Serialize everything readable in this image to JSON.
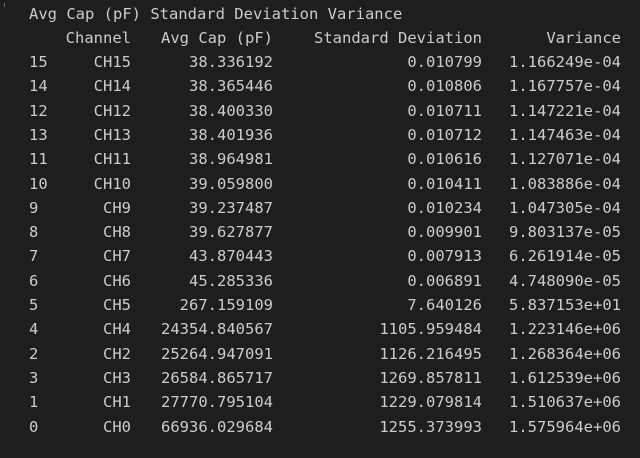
{
  "title": "Avg Cap (pF) Standard Deviation Variance",
  "headers": {
    "channel": "Channel",
    "avg_cap": "Avg Cap (pF)",
    "std_dev": "Standard Deviation",
    "variance": "Variance"
  },
  "rows": [
    {
      "index": "15",
      "channel": "CH15",
      "avg_cap": "38.336192",
      "std_dev": "0.010799",
      "variance": "1.166249e-04"
    },
    {
      "index": "14",
      "channel": "CH14",
      "avg_cap": "38.365446",
      "std_dev": "0.010806",
      "variance": "1.167757e-04"
    },
    {
      "index": "12",
      "channel": "CH12",
      "avg_cap": "38.400330",
      "std_dev": "0.010711",
      "variance": "1.147221e-04"
    },
    {
      "index": "13",
      "channel": "CH13",
      "avg_cap": "38.401936",
      "std_dev": "0.010712",
      "variance": "1.147463e-04"
    },
    {
      "index": "11",
      "channel": "CH11",
      "avg_cap": "38.964981",
      "std_dev": "0.010616",
      "variance": "1.127071e-04"
    },
    {
      "index": "10",
      "channel": "CH10",
      "avg_cap": "39.059800",
      "std_dev": "0.010411",
      "variance": "1.083886e-04"
    },
    {
      "index": "9",
      "channel": "CH9",
      "avg_cap": "39.237487",
      "std_dev": "0.010234",
      "variance": "1.047305e-04"
    },
    {
      "index": "8",
      "channel": "CH8",
      "avg_cap": "39.627877",
      "std_dev": "0.009901",
      "variance": "9.803137e-05"
    },
    {
      "index": "7",
      "channel": "CH7",
      "avg_cap": "43.870443",
      "std_dev": "0.007913",
      "variance": "6.261914e-05"
    },
    {
      "index": "6",
      "channel": "CH6",
      "avg_cap": "45.285336",
      "std_dev": "0.006891",
      "variance": "4.748090e-05"
    },
    {
      "index": "5",
      "channel": "CH5",
      "avg_cap": "267.159109",
      "std_dev": "7.640126",
      "variance": "5.837153e+01"
    },
    {
      "index": "4",
      "channel": "CH4",
      "avg_cap": "24354.840567",
      "std_dev": "1105.959484",
      "variance": "1.223146e+06"
    },
    {
      "index": "2",
      "channel": "CH2",
      "avg_cap": "25264.947091",
      "std_dev": "1126.216495",
      "variance": "1.268364e+06"
    },
    {
      "index": "3",
      "channel": "CH3",
      "avg_cap": "26584.865717",
      "std_dev": "1269.857811",
      "variance": "1.612539e+06"
    },
    {
      "index": "1",
      "channel": "CH1",
      "avg_cap": "27770.795104",
      "std_dev": "1229.079814",
      "variance": "1.510637e+06"
    },
    {
      "index": "0",
      "channel": "CH0",
      "avg_cap": "66936.029684",
      "std_dev": "1255.373993",
      "variance": "1.575964e+06"
    }
  ],
  "colors": {
    "background": "#1e1e1e",
    "text": "#cccccc"
  }
}
